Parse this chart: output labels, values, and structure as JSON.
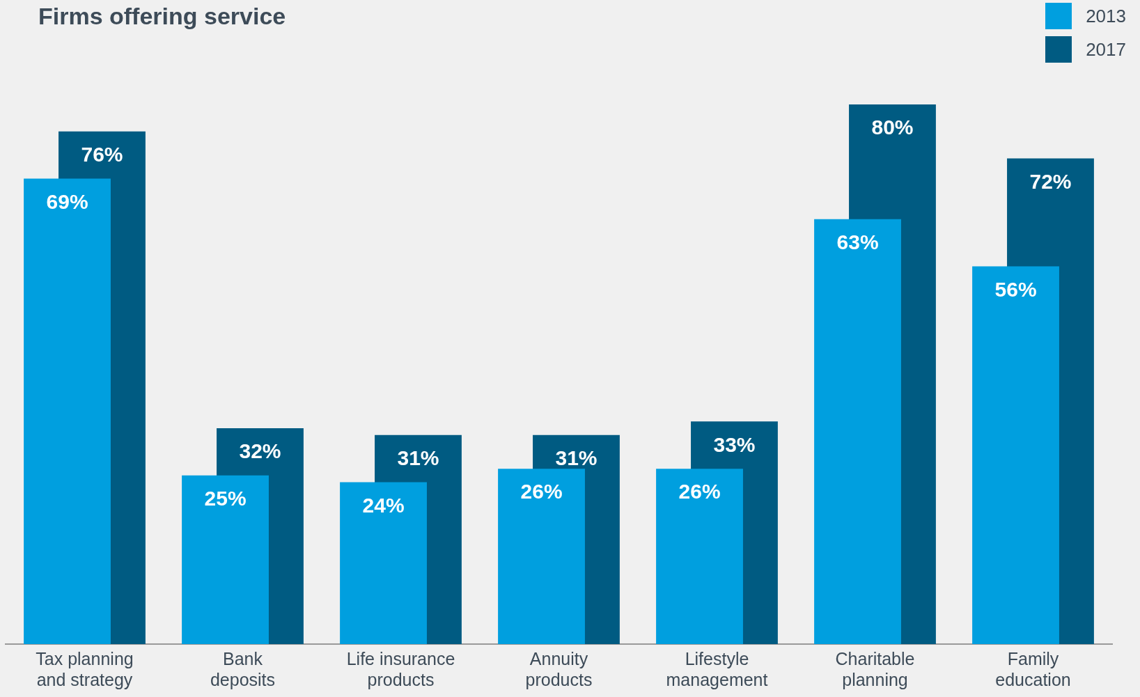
{
  "chart_data": {
    "type": "bar",
    "title": "Firms offering service",
    "categories": [
      "Tax planning and strategy",
      "Bank deposits",
      "Life insurance products",
      "Annuity products",
      "Lifestyle management",
      "Charitable planning",
      "Family education"
    ],
    "series": [
      {
        "name": "2013",
        "color": "#009fdf",
        "values": [
          69,
          25,
          24,
          26,
          26,
          63,
          56
        ],
        "value_labels": [
          "69%",
          "25%",
          "24%",
          "26%",
          "26%",
          "63%",
          "56%"
        ]
      },
      {
        "name": "2017",
        "color": "#005b82",
        "values": [
          76,
          32,
          31,
          31,
          33,
          80,
          72
        ],
        "value_labels": [
          "76%",
          "32%",
          "31%",
          "31%",
          "33%",
          "80%",
          "72%"
        ]
      }
    ],
    "legend": "top right",
    "grid": false
  }
}
